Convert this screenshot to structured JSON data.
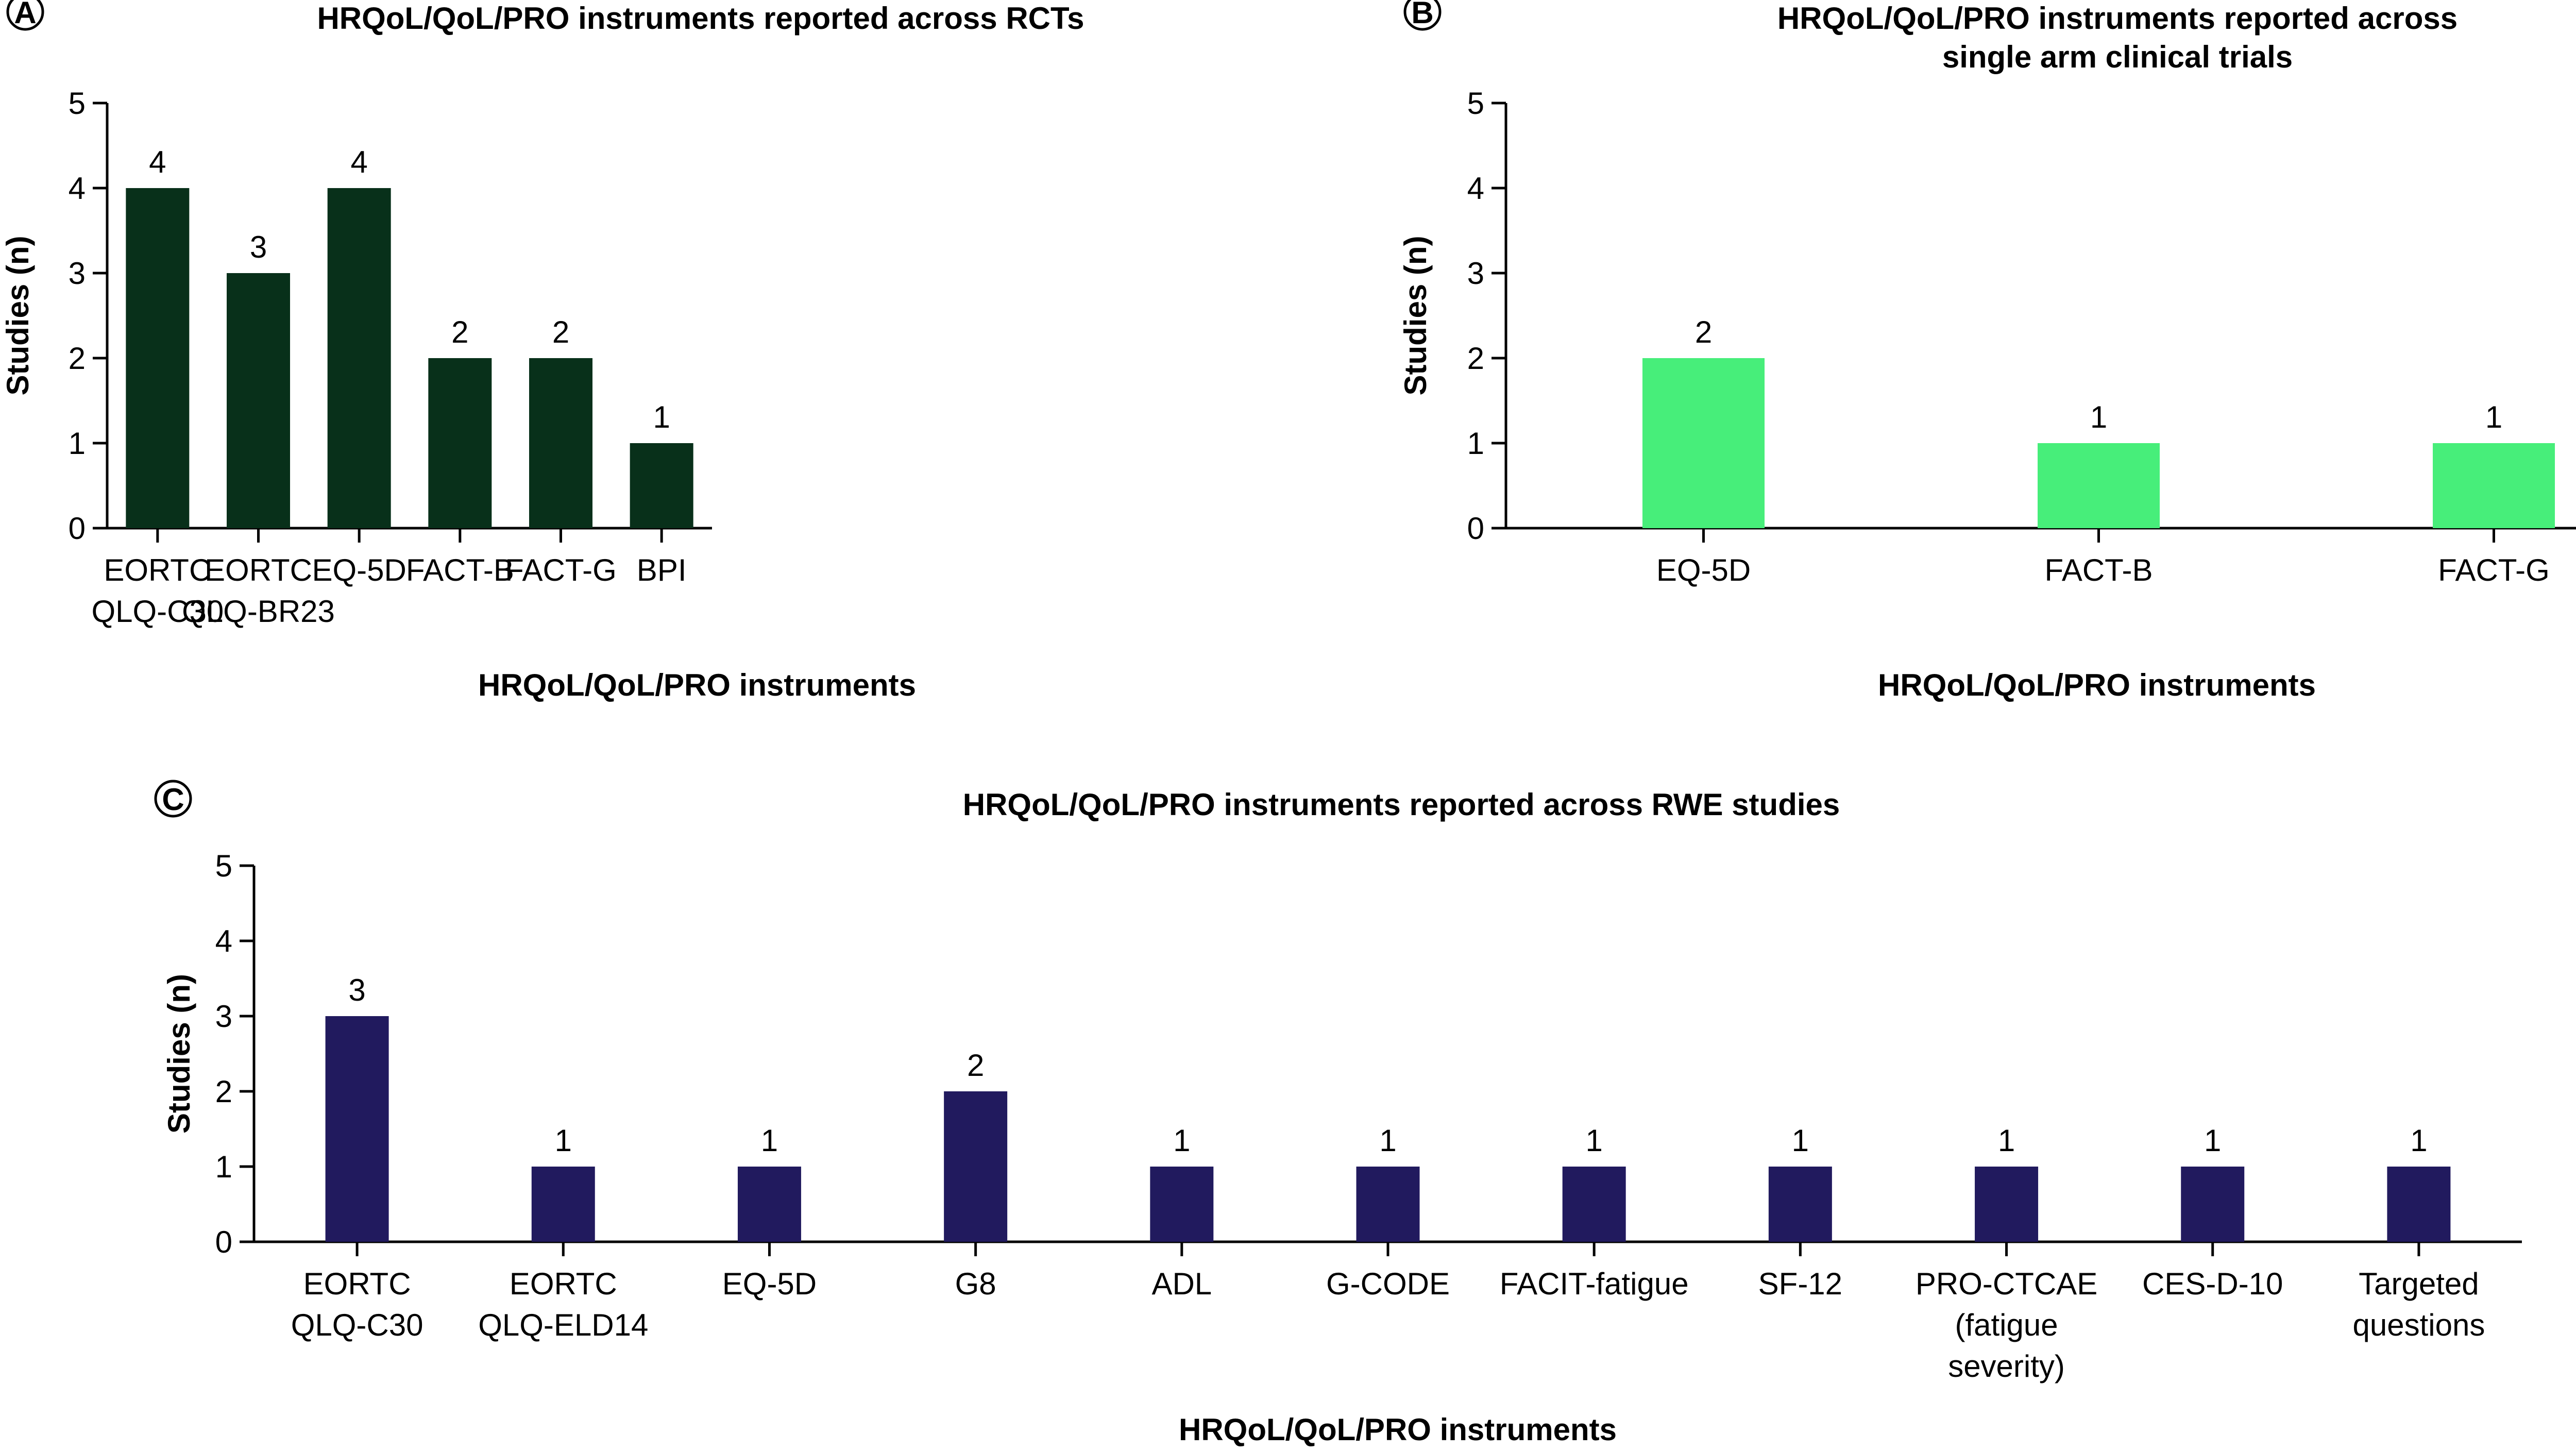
{
  "chart_data": [
    {
      "panel": "A",
      "type": "bar",
      "title": [
        "HRQoL/QoL/PRO instruments reported across RCTs"
      ],
      "xlabel": "HRQoL/QoL/PRO instruments",
      "ylabel": "Studies (n)",
      "ylim": [
        0,
        5
      ],
      "yticks": [
        0,
        1,
        2,
        3,
        4,
        5
      ],
      "categories": [
        [
          "EORTC",
          "QLQ-C30"
        ],
        [
          "EORTC",
          "QLQ-BR23"
        ],
        [
          "EQ-5D"
        ],
        [
          "FACT-B"
        ],
        [
          "FACT-G"
        ],
        [
          "BPI"
        ]
      ],
      "values": [
        4,
        3,
        4,
        2,
        2,
        1
      ],
      "color": "#08301a"
    },
    {
      "panel": "B",
      "type": "bar",
      "title": [
        "HRQoL/QoL/PRO instruments reported across",
        "single arm clinical trials"
      ],
      "xlabel": "HRQoL/QoL/PRO instruments",
      "ylabel": "Studies (n)",
      "ylim": [
        0,
        5
      ],
      "yticks": [
        0,
        1,
        2,
        3,
        4,
        5
      ],
      "categories": [
        [
          "EQ-5D"
        ],
        [
          "FACT-B"
        ],
        [
          "FACT-G"
        ]
      ],
      "values": [
        2,
        1,
        1
      ],
      "color": "#47ee7a"
    },
    {
      "panel": "C",
      "type": "bar",
      "title": [
        "HRQoL/QoL/PRO instruments reported across RWE studies"
      ],
      "xlabel": "HRQoL/QoL/PRO instruments",
      "ylabel": "Studies (n)",
      "ylim": [
        0,
        5
      ],
      "yticks": [
        0,
        1,
        2,
        3,
        4,
        5
      ],
      "categories": [
        [
          "EORTC",
          "QLQ-C30"
        ],
        [
          "EORTC",
          "QLQ-ELD14"
        ],
        [
          "EQ-5D"
        ],
        [
          "G8"
        ],
        [
          "ADL"
        ],
        [
          "G-CODE"
        ],
        [
          "FACIT-fatigue"
        ],
        [
          "SF-12"
        ],
        [
          "PRO-CTCAE",
          "(fatigue",
          "severity)"
        ],
        [
          "CES-D-10"
        ],
        [
          "Targeted",
          "questions"
        ]
      ],
      "values": [
        3,
        1,
        1,
        2,
        1,
        1,
        1,
        1,
        1,
        1,
        1
      ],
      "color": "#211a5e"
    }
  ]
}
